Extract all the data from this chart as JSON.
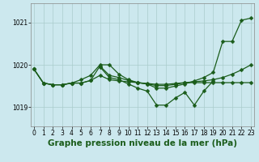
{
  "title": "Graphe pression niveau de la mer (hPa)",
  "bg_color": "#cce8ee",
  "line_color": "#1a5c1a",
  "grid_color": "#aacccc",
  "x_ticks": [
    0,
    1,
    2,
    3,
    4,
    5,
    6,
    7,
    8,
    9,
    10,
    11,
    12,
    13,
    14,
    15,
    16,
    17,
    18,
    19,
    20,
    21,
    22,
    23
  ],
  "y_ticks": [
    1019,
    1020,
    1021
  ],
  "ylim": [
    1018.55,
    1021.45
  ],
  "xlim": [
    -0.3,
    23.3
  ],
  "series": [
    {
      "x": [
        0,
        1,
        2,
        3,
        4,
        5,
        6,
        7,
        8,
        9,
        10,
        11,
        12,
        13,
        14,
        15,
        16,
        17,
        18,
        19,
        20,
        21,
        22,
        23
      ],
      "y": [
        1019.9,
        1019.57,
        1019.53,
        1019.53,
        1019.57,
        1019.57,
        1019.63,
        1019.97,
        1019.75,
        1019.7,
        1019.63,
        1019.58,
        1019.55,
        1019.51,
        1019.51,
        1019.54,
        1019.58,
        1019.58,
        1019.58,
        1019.58,
        1019.58,
        1019.58,
        1019.58,
        1019.58
      ]
    },
    {
      "x": [
        0,
        1,
        2,
        3,
        4,
        5,
        6,
        7,
        8,
        9,
        10,
        11,
        12,
        13,
        14,
        15,
        16,
        17,
        18,
        19,
        20,
        21,
        22,
        23
      ],
      "y": [
        1019.9,
        1019.57,
        1019.53,
        1019.53,
        1019.57,
        1019.65,
        1019.75,
        1020.0,
        1020.0,
        1019.78,
        1019.65,
        1019.58,
        1019.55,
        1019.45,
        1019.45,
        1019.5,
        1019.55,
        1019.62,
        1019.7,
        1019.82,
        1020.55,
        1020.55,
        1021.05,
        1021.1
      ]
    },
    {
      "x": [
        7,
        8,
        9,
        10,
        11,
        12,
        13,
        14,
        15,
        16,
        17,
        18,
        19
      ],
      "y": [
        1019.95,
        1019.7,
        1019.65,
        1019.55,
        1019.45,
        1019.38,
        1019.05,
        1019.05,
        1019.22,
        1019.35,
        1019.05,
        1019.38,
        1019.62
      ]
    },
    {
      "x": [
        0,
        1,
        2,
        3,
        4,
        5,
        6,
        7,
        8,
        9,
        10,
        11,
        12,
        13,
        14,
        15,
        16,
        17,
        18,
        19,
        20,
        21,
        22,
        23
      ],
      "y": [
        1019.9,
        1019.57,
        1019.53,
        1019.53,
        1019.57,
        1019.57,
        1019.63,
        1019.75,
        1019.65,
        1019.62,
        1019.6,
        1019.58,
        1019.56,
        1019.54,
        1019.54,
        1019.56,
        1019.58,
        1019.6,
        1019.62,
        1019.65,
        1019.7,
        1019.78,
        1019.88,
        1020.0
      ]
    }
  ],
  "title_fontsize": 7.5,
  "tick_fontsize": 5.5,
  "marker": "D",
  "markersize": 2.5,
  "linewidth": 0.9
}
